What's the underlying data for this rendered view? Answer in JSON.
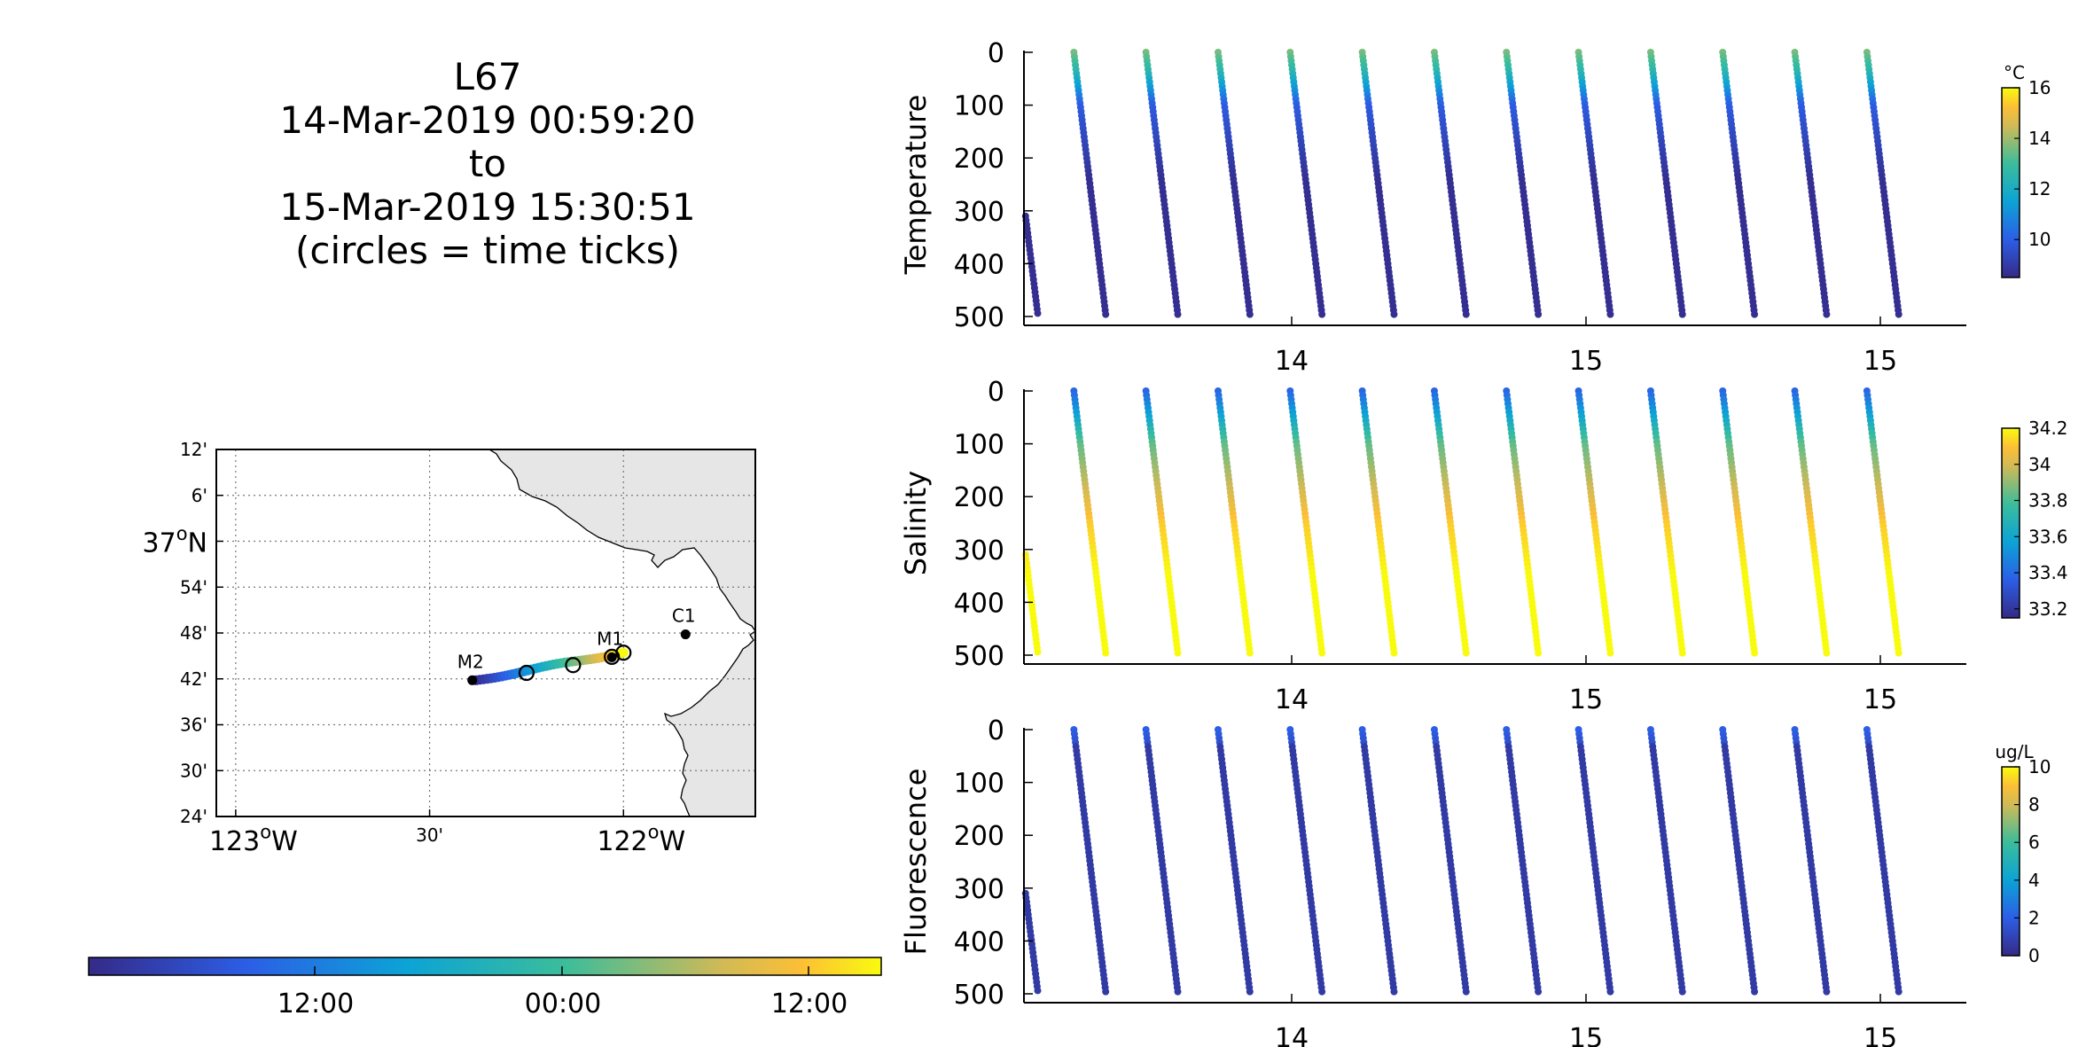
{
  "title": {
    "lines": [
      "L67",
      "14-Mar-2019 00:59:20",
      "to",
      "15-Mar-2019 15:30:51",
      "(circles = time ticks)"
    ]
  },
  "map": {
    "lat_ticks": [
      "12'",
      "6'",
      "37°N",
      "54'",
      "48'",
      "42'",
      "36'",
      "30'",
      "24'"
    ],
    "lon_ticks": [
      "123°W",
      "30'",
      "122°W"
    ],
    "lat_range": [
      36.4,
      37.2
    ],
    "lon_range": [
      -123.05,
      -121.66
    ],
    "stations": [
      {
        "name": "M2",
        "lon": -122.39,
        "lat": 36.697
      },
      {
        "name": "M1",
        "lon": -122.03,
        "lat": 36.747
      },
      {
        "name": "C1",
        "lon": -121.84,
        "lat": 36.797
      }
    ],
    "track": {
      "start": [
        -122.38,
        36.697
      ],
      "end": [
        -122.0,
        36.758
      ]
    },
    "time_ticks": [
      [
        -122.25,
        36.713
      ],
      [
        -122.13,
        36.73
      ],
      [
        -122.03,
        36.748
      ],
      [
        -122.0,
        36.757
      ]
    ],
    "colors": {
      "land": "#e6e6e6",
      "coast": "#000000"
    }
  },
  "time_colorbar": {
    "ticks": [
      "12:00",
      "00:00",
      "12:00"
    ]
  },
  "chart_data": [
    {
      "type": "scatter",
      "ylabel": "Temperature",
      "ylim": [
        0,
        500
      ],
      "y_ticks": [
        "0",
        "100",
        "200",
        "300",
        "400",
        "500"
      ],
      "x_ticks": [
        "14",
        "15",
        "15"
      ],
      "colorbar": {
        "unit": "°C",
        "ticks": [
          "16",
          "14",
          "12",
          "10"
        ],
        "range": [
          8.5,
          16
        ]
      },
      "profile_value_profile": "temperature"
    },
    {
      "type": "scatter",
      "ylabel": "Salinity",
      "ylim": [
        0,
        500
      ],
      "y_ticks": [
        "0",
        "100",
        "200",
        "300",
        "400",
        "500"
      ],
      "x_ticks": [
        "14",
        "15",
        "15"
      ],
      "colorbar": {
        "unit": "",
        "ticks": [
          "34.2",
          "34",
          "33.8",
          "33.6",
          "33.4",
          "33.2"
        ],
        "range": [
          33.15,
          34.2
        ]
      },
      "profile_value_profile": "salinity"
    },
    {
      "type": "scatter",
      "ylabel": "Fluorescence",
      "ylim": [
        0,
        500
      ],
      "y_ticks": [
        "0",
        "100",
        "200",
        "300",
        "400",
        "500"
      ],
      "x_ticks": [
        "14",
        "15",
        "15"
      ],
      "colorbar": {
        "unit": "ug/L",
        "ticks": [
          "10",
          "8",
          "6",
          "4",
          "2",
          "0"
        ],
        "range": [
          0,
          10
        ]
      },
      "profile_value_profile": "fluorescence"
    }
  ]
}
